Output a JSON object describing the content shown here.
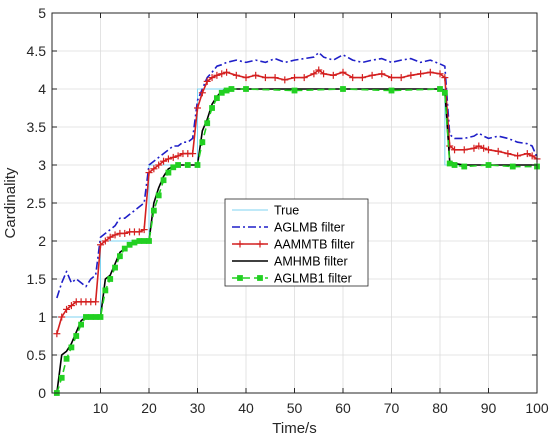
{
  "chart_data": {
    "type": "line",
    "xlabel": "Time/s",
    "ylabel": "Cardinality",
    "xlim": [
      0,
      100
    ],
    "ylim": [
      0,
      5
    ],
    "xticks": [
      10,
      20,
      30,
      40,
      50,
      60,
      70,
      80,
      90,
      100
    ],
    "yticks": [
      0,
      0.5,
      1,
      1.5,
      2,
      2.5,
      3,
      3.5,
      4,
      4.5,
      5
    ],
    "grid": true,
    "legend_position": "center",
    "series": [
      {
        "name": "True",
        "color": "#7fd3f0",
        "style": "solid",
        "marker": "none",
        "points": [
          [
            1,
            1
          ],
          [
            10,
            1
          ],
          [
            10,
            2
          ],
          [
            20,
            2
          ],
          [
            20,
            3
          ],
          [
            30,
            3
          ],
          [
            30,
            4
          ],
          [
            81,
            4
          ],
          [
            81,
            3
          ],
          [
            100,
            3
          ]
        ]
      },
      {
        "name": "AGLMB filter",
        "color": "#1f1fc8",
        "style": "dashdot",
        "marker": "none",
        "points": [
          [
            1,
            1.25
          ],
          [
            2,
            1.45
          ],
          [
            3,
            1.6
          ],
          [
            4,
            1.45
          ],
          [
            5,
            1.5
          ],
          [
            6,
            1.45
          ],
          [
            7,
            1.4
          ],
          [
            8,
            1.5
          ],
          [
            9,
            1.55
          ],
          [
            10,
            2.05
          ],
          [
            11,
            2.1
          ],
          [
            12,
            2.15
          ],
          [
            13,
            2.2
          ],
          [
            14,
            2.3
          ],
          [
            15,
            2.3
          ],
          [
            16,
            2.35
          ],
          [
            17,
            2.4
          ],
          [
            18,
            2.45
          ],
          [
            19,
            2.5
          ],
          [
            20,
            3.0
          ],
          [
            21,
            3.05
          ],
          [
            22,
            3.1
          ],
          [
            23,
            3.15
          ],
          [
            24,
            3.2
          ],
          [
            25,
            3.25
          ],
          [
            26,
            3.25
          ],
          [
            27,
            3.3
          ],
          [
            28,
            3.3
          ],
          [
            29,
            3.35
          ],
          [
            30,
            3.85
          ],
          [
            31,
            4.0
          ],
          [
            32,
            4.15
          ],
          [
            33,
            4.22
          ],
          [
            34,
            4.3
          ],
          [
            35,
            4.32
          ],
          [
            36,
            4.35
          ],
          [
            38,
            4.38
          ],
          [
            40,
            4.35
          ],
          [
            42,
            4.38
          ],
          [
            44,
            4.35
          ],
          [
            46,
            4.4
          ],
          [
            48,
            4.35
          ],
          [
            50,
            4.38
          ],
          [
            52,
            4.4
          ],
          [
            54,
            4.42
          ],
          [
            55,
            4.48
          ],
          [
            56,
            4.42
          ],
          [
            58,
            4.38
          ],
          [
            60,
            4.45
          ],
          [
            62,
            4.38
          ],
          [
            64,
            4.35
          ],
          [
            66,
            4.38
          ],
          [
            68,
            4.4
          ],
          [
            70,
            4.35
          ],
          [
            72,
            4.38
          ],
          [
            74,
            4.4
          ],
          [
            76,
            4.35
          ],
          [
            78,
            4.38
          ],
          [
            80,
            4.33
          ],
          [
            81,
            4.3
          ],
          [
            82,
            3.4
          ],
          [
            83,
            3.35
          ],
          [
            85,
            3.35
          ],
          [
            87,
            3.38
          ],
          [
            88,
            3.42
          ],
          [
            89,
            3.38
          ],
          [
            90,
            3.35
          ],
          [
            92,
            3.38
          ],
          [
            94,
            3.35
          ],
          [
            96,
            3.3
          ],
          [
            98,
            3.28
          ],
          [
            99,
            3.25
          ],
          [
            100,
            3.1
          ]
        ]
      },
      {
        "name": "AAMMTB filter",
        "color": "#d42020",
        "style": "solid",
        "marker": "plus",
        "points": [
          [
            1,
            0.78
          ],
          [
            2,
            1.0
          ],
          [
            3,
            1.1
          ],
          [
            4,
            1.15
          ],
          [
            5,
            1.2
          ],
          [
            6,
            1.2
          ],
          [
            7,
            1.2
          ],
          [
            8,
            1.2
          ],
          [
            9,
            1.2
          ],
          [
            10,
            1.95
          ],
          [
            11,
            2.0
          ],
          [
            12,
            2.05
          ],
          [
            13,
            2.08
          ],
          [
            14,
            2.1
          ],
          [
            15,
            2.1
          ],
          [
            16,
            2.12
          ],
          [
            17,
            2.12
          ],
          [
            18,
            2.12
          ],
          [
            19,
            2.15
          ],
          [
            20,
            2.9
          ],
          [
            21,
            2.95
          ],
          [
            22,
            3.0
          ],
          [
            23,
            3.05
          ],
          [
            24,
            3.08
          ],
          [
            25,
            3.1
          ],
          [
            26,
            3.12
          ],
          [
            27,
            3.15
          ],
          [
            28,
            3.15
          ],
          [
            29,
            3.15
          ],
          [
            30,
            3.75
          ],
          [
            31,
            3.95
          ],
          [
            32,
            4.1
          ],
          [
            33,
            4.15
          ],
          [
            34,
            4.18
          ],
          [
            35,
            4.2
          ],
          [
            36,
            4.22
          ],
          [
            38,
            4.18
          ],
          [
            40,
            4.15
          ],
          [
            42,
            4.18
          ],
          [
            44,
            4.15
          ],
          [
            46,
            4.15
          ],
          [
            48,
            4.12
          ],
          [
            50,
            4.15
          ],
          [
            52,
            4.15
          ],
          [
            54,
            4.2
          ],
          [
            55,
            4.25
          ],
          [
            56,
            4.2
          ],
          [
            58,
            4.18
          ],
          [
            60,
            4.22
          ],
          [
            62,
            4.15
          ],
          [
            64,
            4.15
          ],
          [
            66,
            4.18
          ],
          [
            68,
            4.2
          ],
          [
            70,
            4.15
          ],
          [
            72,
            4.15
          ],
          [
            74,
            4.18
          ],
          [
            76,
            4.2
          ],
          [
            78,
            4.22
          ],
          [
            80,
            4.2
          ],
          [
            81,
            4.15
          ],
          [
            82,
            3.25
          ],
          [
            83,
            3.2
          ],
          [
            85,
            3.2
          ],
          [
            87,
            3.22
          ],
          [
            88,
            3.25
          ],
          [
            89,
            3.22
          ],
          [
            90,
            3.2
          ],
          [
            92,
            3.18
          ],
          [
            94,
            3.15
          ],
          [
            96,
            3.12
          ],
          [
            98,
            3.15
          ],
          [
            99,
            3.12
          ],
          [
            100,
            3.08
          ]
        ]
      },
      {
        "name": "AMHMB filter",
        "color": "#000000",
        "style": "solid",
        "marker": "none",
        "points": [
          [
            1,
            0.0
          ],
          [
            2,
            0.5
          ],
          [
            3,
            0.55
          ],
          [
            4,
            0.65
          ],
          [
            5,
            0.8
          ],
          [
            6,
            0.95
          ],
          [
            7,
            1.0
          ],
          [
            8,
            1.0
          ],
          [
            9,
            1.0
          ],
          [
            10,
            1.0
          ],
          [
            11,
            1.5
          ],
          [
            12,
            1.55
          ],
          [
            13,
            1.7
          ],
          [
            14,
            1.85
          ],
          [
            15,
            1.9
          ],
          [
            16,
            1.95
          ],
          [
            17,
            1.98
          ],
          [
            18,
            2.0
          ],
          [
            19,
            2.0
          ],
          [
            20,
            2.0
          ],
          [
            21,
            2.5
          ],
          [
            22,
            2.7
          ],
          [
            23,
            2.85
          ],
          [
            24,
            2.95
          ],
          [
            25,
            2.98
          ],
          [
            26,
            3.0
          ],
          [
            28,
            3.0
          ],
          [
            30,
            3.0
          ],
          [
            31,
            3.45
          ],
          [
            32,
            3.6
          ],
          [
            33,
            3.8
          ],
          [
            34,
            3.9
          ],
          [
            35,
            3.97
          ],
          [
            36,
            4.0
          ],
          [
            40,
            4.0
          ],
          [
            50,
            4.0
          ],
          [
            60,
            4.0
          ],
          [
            70,
            4.0
          ],
          [
            80,
            4.0
          ],
          [
            81,
            3.98
          ],
          [
            82,
            3.05
          ],
          [
            83,
            3.02
          ],
          [
            85,
            3.0
          ],
          [
            90,
            3.0
          ],
          [
            95,
            3.0
          ],
          [
            100,
            3.0
          ]
        ]
      },
      {
        "name": "AGLMB1 filter",
        "color": "#22d022",
        "style": "dashed",
        "marker": "square",
        "points": [
          [
            1,
            0.0
          ],
          [
            2,
            0.2
          ],
          [
            3,
            0.45
          ],
          [
            4,
            0.6
          ],
          [
            5,
            0.75
          ],
          [
            6,
            0.9
          ],
          [
            7,
            1.0
          ],
          [
            8,
            1.0
          ],
          [
            9,
            1.0
          ],
          [
            10,
            1.0
          ],
          [
            11,
            1.35
          ],
          [
            12,
            1.5
          ],
          [
            13,
            1.65
          ],
          [
            14,
            1.8
          ],
          [
            15,
            1.9
          ],
          [
            16,
            1.95
          ],
          [
            17,
            1.98
          ],
          [
            18,
            2.0
          ],
          [
            19,
            2.0
          ],
          [
            20,
            2.0
          ],
          [
            21,
            2.4
          ],
          [
            22,
            2.6
          ],
          [
            23,
            2.8
          ],
          [
            24,
            2.9
          ],
          [
            25,
            2.97
          ],
          [
            26,
            3.0
          ],
          [
            28,
            3.0
          ],
          [
            30,
            3.0
          ],
          [
            31,
            3.3
          ],
          [
            32,
            3.55
          ],
          [
            33,
            3.75
          ],
          [
            34,
            3.88
          ],
          [
            35,
            3.95
          ],
          [
            36,
            3.98
          ],
          [
            37,
            4.0
          ],
          [
            40,
            4.0
          ],
          [
            50,
            3.98
          ],
          [
            60,
            4.0
          ],
          [
            70,
            3.98
          ],
          [
            80,
            4.0
          ],
          [
            81,
            3.95
          ],
          [
            82,
            3.02
          ],
          [
            83,
            3.0
          ],
          [
            85,
            2.98
          ],
          [
            90,
            3.0
          ],
          [
            95,
            2.98
          ],
          [
            100,
            2.98
          ]
        ]
      }
    ]
  }
}
